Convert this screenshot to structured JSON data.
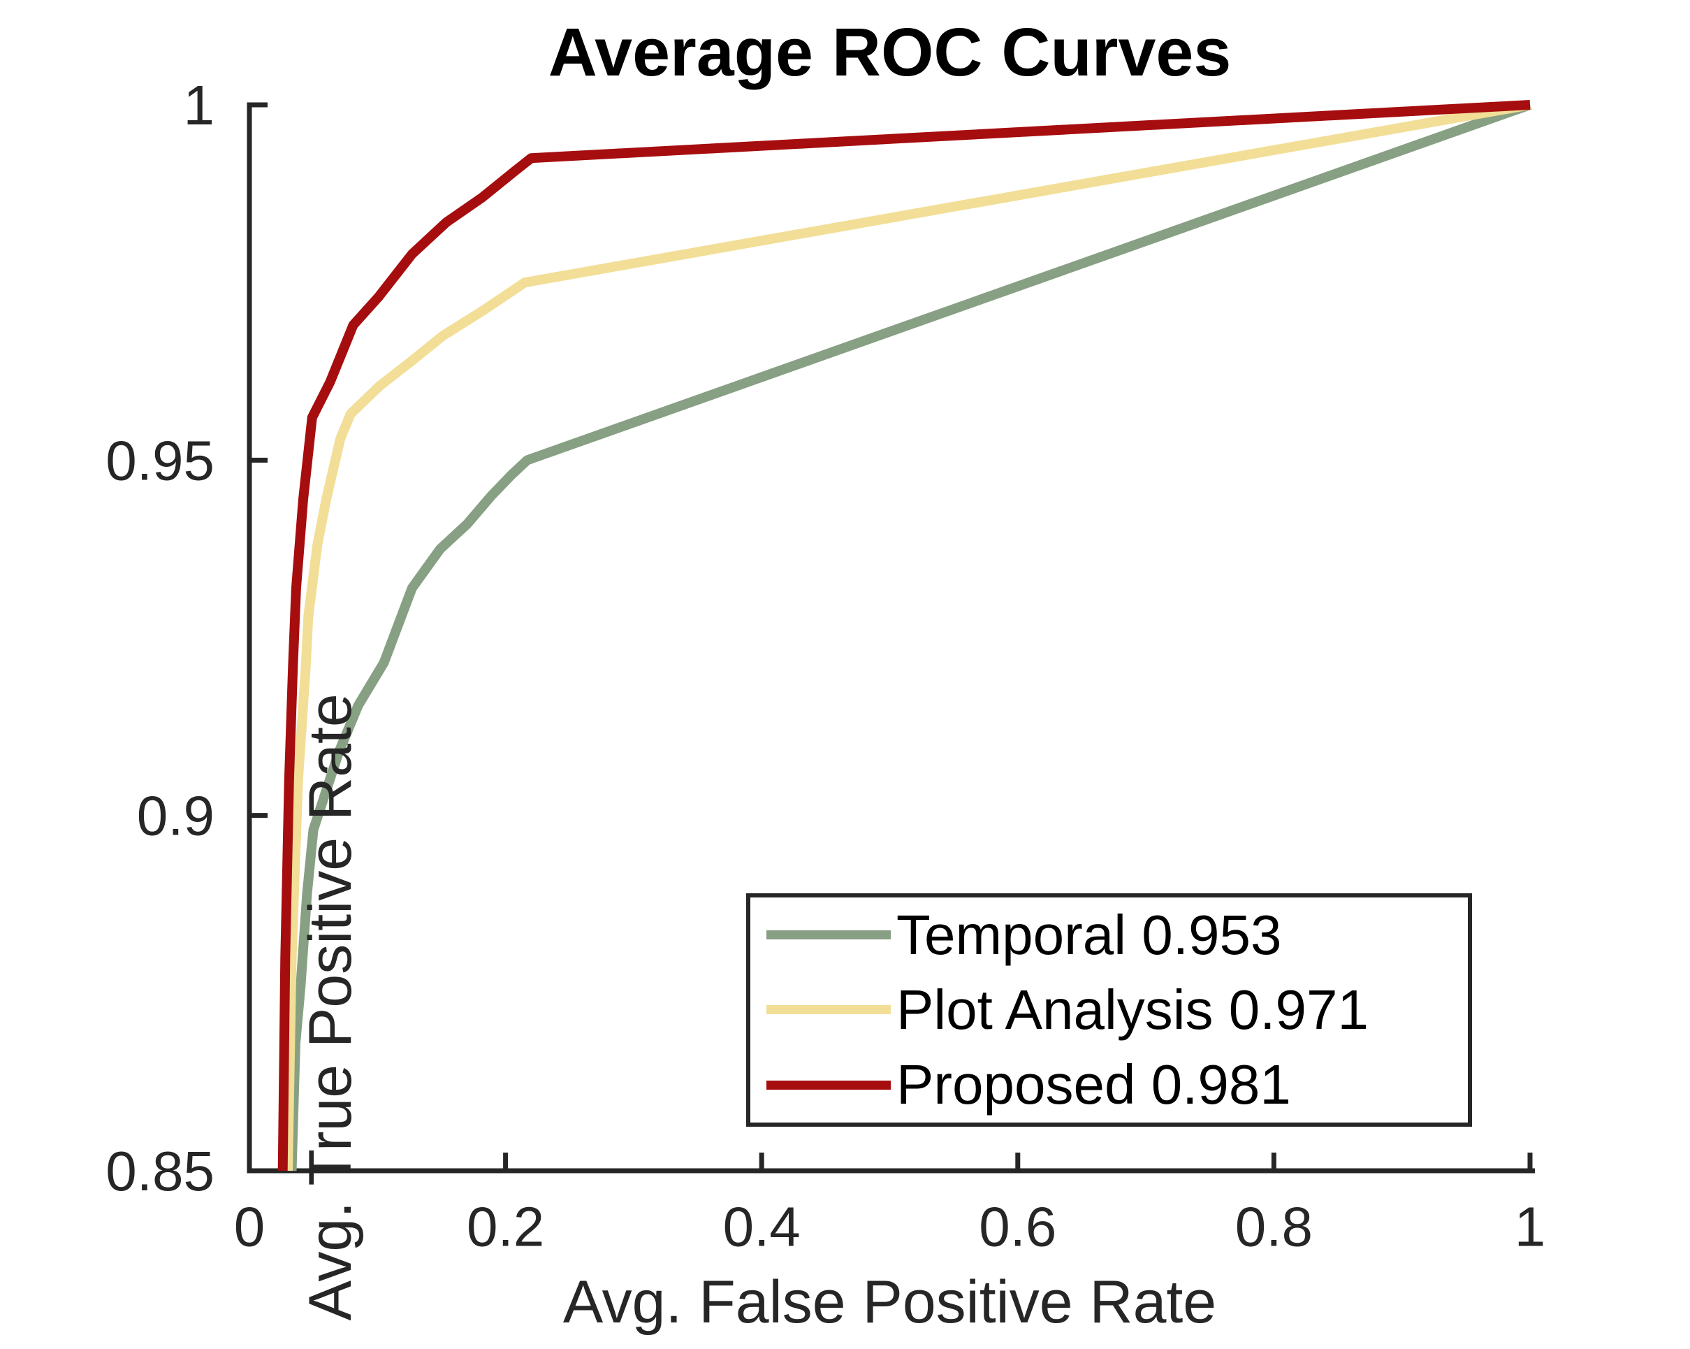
{
  "chart_data": {
    "type": "line",
    "title": "Average ROC Curves",
    "xlabel": "Avg. False Positive Rate",
    "ylabel": "Avg. True Positive Rate",
    "xlim": [
      0,
      1
    ],
    "ylim": [
      0.85,
      1
    ],
    "x_ticks": [
      0,
      0.2,
      0.4,
      0.6,
      0.8,
      1
    ],
    "x_tick_labels": [
      "0",
      "0.2",
      "0.4",
      "0.6",
      "0.8",
      "1"
    ],
    "y_ticks": [
      0.85,
      0.9,
      0.95,
      1
    ],
    "y_tick_labels": [
      "0.85",
      "0.9",
      "0.95",
      "1"
    ],
    "grid": false,
    "legend_position": "lower-right-inside",
    "axes_color": "#262626",
    "background_color": "#ffffff",
    "line_width": 14,
    "series": [
      {
        "name": "Temporal",
        "auc": 0.953,
        "legend_label": "Temporal 0.953",
        "color": "#87A083",
        "points": [
          [
            0.033,
            0.85
          ],
          [
            0.036,
            0.868
          ],
          [
            0.04,
            0.876
          ],
          [
            0.045,
            0.889
          ],
          [
            0.05,
            0.898
          ],
          [
            0.07,
            0.909
          ],
          [
            0.085,
            0.9155
          ],
          [
            0.105,
            0.9215
          ],
          [
            0.127,
            0.932
          ],
          [
            0.149,
            0.9375
          ],
          [
            0.17,
            0.941
          ],
          [
            0.189,
            0.945
          ],
          [
            0.205,
            0.948
          ],
          [
            0.217,
            0.95
          ],
          [
            1.0,
            1.0
          ]
        ]
      },
      {
        "name": "Plot Analysis",
        "auc": 0.971,
        "legend_label": "Plot Analysis 0.971",
        "color": "#F2DE96",
        "points": [
          [
            0.03,
            0.85
          ],
          [
            0.033,
            0.88
          ],
          [
            0.038,
            0.905
          ],
          [
            0.044,
            0.921
          ],
          [
            0.046,
            0.928
          ],
          [
            0.053,
            0.938
          ],
          [
            0.06,
            0.9445
          ],
          [
            0.071,
            0.953
          ],
          [
            0.079,
            0.9565
          ],
          [
            0.102,
            0.9605
          ],
          [
            0.127,
            0.964
          ],
          [
            0.151,
            0.9675
          ],
          [
            0.182,
            0.971
          ],
          [
            0.215,
            0.975
          ],
          [
            1.0,
            1.0
          ]
        ]
      },
      {
        "name": "Proposed",
        "auc": 0.981,
        "legend_label": "Proposed 0.981",
        "color": "#A60D0F",
        "points": [
          [
            0.026,
            0.85
          ],
          [
            0.028,
            0.88
          ],
          [
            0.031,
            0.905
          ],
          [
            0.034,
            0.921
          ],
          [
            0.0365,
            0.932
          ],
          [
            0.042,
            0.9445
          ],
          [
            0.049,
            0.956
          ],
          [
            0.063,
            0.961
          ],
          [
            0.081,
            0.969
          ],
          [
            0.101,
            0.973
          ],
          [
            0.127,
            0.979
          ],
          [
            0.154,
            0.9835
          ],
          [
            0.182,
            0.987
          ],
          [
            0.206,
            0.9905
          ],
          [
            0.22,
            0.9925
          ],
          [
            1.0,
            1.0
          ]
        ]
      }
    ]
  }
}
